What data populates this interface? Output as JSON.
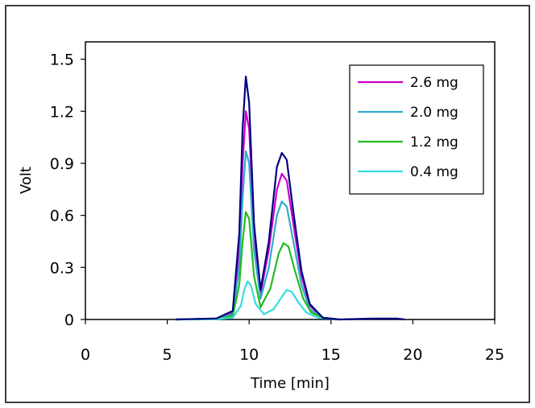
{
  "chart_data": {
    "type": "line",
    "xlabel": "Time [min]",
    "ylabel": "Volt",
    "xlim": [
      0,
      25
    ],
    "ylim": [
      0,
      1.6
    ],
    "x_ticks": [
      0,
      5,
      10,
      15,
      20,
      25
    ],
    "x_tick_labels": [
      "0",
      "5",
      "10",
      "15",
      "20",
      "25"
    ],
    "y_ticks": [
      0,
      0.3,
      0.6,
      0.9,
      1.2,
      1.5
    ],
    "y_tick_labels": [
      "0",
      "0.3",
      "0.6",
      "0.9",
      "1.2",
      "1.5"
    ],
    "grid": false,
    "legend_position": "top-right",
    "series": [
      {
        "name": "2.6 mg",
        "color": "#cc00cc",
        "points": [
          [
            5.5,
            0
          ],
          [
            8,
            0.005
          ],
          [
            9,
            0.04
          ],
          [
            9.4,
            0.4
          ],
          [
            9.6,
            0.9
          ],
          [
            9.8,
            1.2
          ],
          [
            10.0,
            1.1
          ],
          [
            10.3,
            0.5
          ],
          [
            10.7,
            0.15
          ],
          [
            11.2,
            0.4
          ],
          [
            11.7,
            0.75
          ],
          [
            12.0,
            0.84
          ],
          [
            12.3,
            0.8
          ],
          [
            12.7,
            0.55
          ],
          [
            13.2,
            0.25
          ],
          [
            13.7,
            0.08
          ],
          [
            14.5,
            0.01
          ],
          [
            15.5,
            0
          ]
        ]
      },
      {
        "name": "2.0 mg",
        "color": "#33aacc",
        "points": [
          [
            5.5,
            0
          ],
          [
            8,
            0.004
          ],
          [
            9,
            0.03
          ],
          [
            9.4,
            0.3
          ],
          [
            9.6,
            0.7
          ],
          [
            9.8,
            0.97
          ],
          [
            10.0,
            0.9
          ],
          [
            10.3,
            0.4
          ],
          [
            10.7,
            0.12
          ],
          [
            11.2,
            0.3
          ],
          [
            11.7,
            0.6
          ],
          [
            12.0,
            0.68
          ],
          [
            12.3,
            0.65
          ],
          [
            12.7,
            0.45
          ],
          [
            13.2,
            0.2
          ],
          [
            13.7,
            0.06
          ],
          [
            14.5,
            0.01
          ],
          [
            15.5,
            0
          ]
        ]
      },
      {
        "name": "1.2 mg",
        "color": "#22bb22",
        "points": [
          [
            5.5,
            0
          ],
          [
            8,
            0.003
          ],
          [
            9,
            0.02
          ],
          [
            9.4,
            0.2
          ],
          [
            9.6,
            0.45
          ],
          [
            9.8,
            0.62
          ],
          [
            10.0,
            0.58
          ],
          [
            10.3,
            0.25
          ],
          [
            10.7,
            0.07
          ],
          [
            11.3,
            0.18
          ],
          [
            11.8,
            0.38
          ],
          [
            12.1,
            0.44
          ],
          [
            12.4,
            0.42
          ],
          [
            12.8,
            0.28
          ],
          [
            13.3,
            0.12
          ],
          [
            13.8,
            0.04
          ],
          [
            14.5,
            0.01
          ],
          [
            15.5,
            0
          ]
        ]
      },
      {
        "name": "0.4 mg",
        "color": "#33dddd",
        "points": [
          [
            5.5,
            0
          ],
          [
            8,
            0.002
          ],
          [
            9,
            0.01
          ],
          [
            9.5,
            0.08
          ],
          [
            9.7,
            0.17
          ],
          [
            9.9,
            0.22
          ],
          [
            10.1,
            0.2
          ],
          [
            10.4,
            0.09
          ],
          [
            10.9,
            0.03
          ],
          [
            11.5,
            0.06
          ],
          [
            12.0,
            0.13
          ],
          [
            12.3,
            0.17
          ],
          [
            12.6,
            0.16
          ],
          [
            13.0,
            0.1
          ],
          [
            13.5,
            0.04
          ],
          [
            14.2,
            0.01
          ],
          [
            15.5,
            0
          ]
        ]
      },
      {
        "color": "#000080",
        "points": [
          [
            5.5,
            0
          ],
          [
            8,
            0.006
          ],
          [
            9,
            0.05
          ],
          [
            9.4,
            0.5
          ],
          [
            9.6,
            1.1
          ],
          [
            9.8,
            1.4
          ],
          [
            10.0,
            1.25
          ],
          [
            10.3,
            0.55
          ],
          [
            10.7,
            0.17
          ],
          [
            11.2,
            0.45
          ],
          [
            11.7,
            0.88
          ],
          [
            12.0,
            0.96
          ],
          [
            12.3,
            0.92
          ],
          [
            12.7,
            0.62
          ],
          [
            13.2,
            0.28
          ],
          [
            13.7,
            0.09
          ],
          [
            14.5,
            0.01
          ],
          [
            15.5,
            0
          ],
          [
            17.5,
            0.005
          ],
          [
            19,
            0.005
          ],
          [
            19.5,
            0
          ]
        ]
      }
    ]
  }
}
